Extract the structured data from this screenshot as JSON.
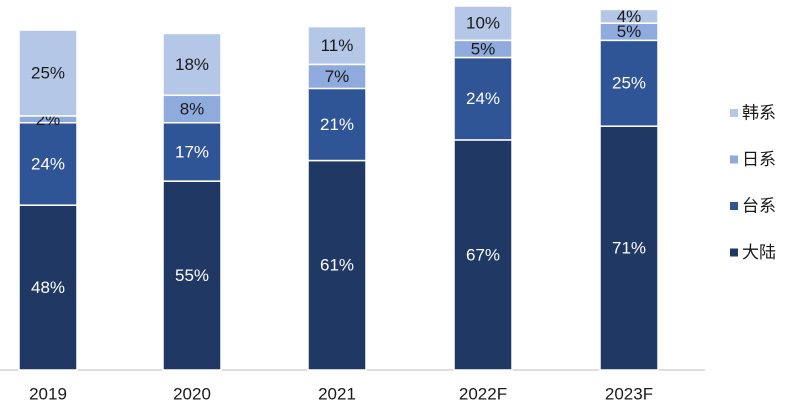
{
  "chart_data": {
    "type": "stacked_bar",
    "categories": [
      "2019",
      "2020",
      "2021",
      "2022F",
      "2023F"
    ],
    "series": [
      {
        "name": "大陆",
        "color": "#203864",
        "values": [
          48,
          55,
          61,
          67,
          71
        ],
        "value_labels": [
          "48%",
          "55%",
          "61%",
          "67%",
          "71%"
        ]
      },
      {
        "name": "台系",
        "color": "#2f5597",
        "values": [
          24,
          17,
          21,
          24,
          25
        ],
        "value_labels": [
          "24%",
          "17%",
          "21%",
          "24%",
          "25%"
        ]
      },
      {
        "name": "日系",
        "color": "#8faadc",
        "values": [
          2,
          8,
          7,
          5,
          5
        ],
        "value_labels": [
          "2%",
          "8%",
          "7%",
          "5%",
          "5%"
        ]
      },
      {
        "name": "韩系",
        "color": "#b4c7e7",
        "values": [
          25,
          18,
          11,
          10,
          4
        ],
        "value_labels": [
          "25%",
          "18%",
          "11%",
          "10%",
          "4%"
        ]
      }
    ],
    "legend": "right"
  }
}
